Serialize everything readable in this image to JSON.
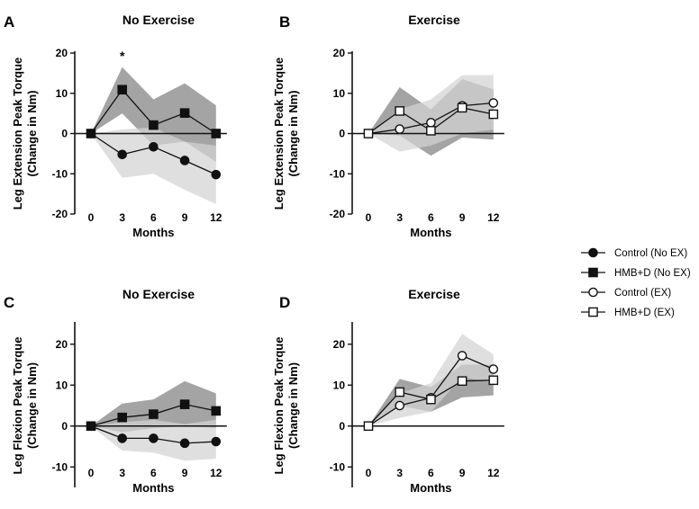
{
  "legend": [
    {
      "label": "Control (No EX)",
      "marker": "circle",
      "filled": true
    },
    {
      "label": "HMB+D (No EX)",
      "marker": "square",
      "filled": true
    },
    {
      "label": "Control (EX)",
      "marker": "circle",
      "filled": false
    },
    {
      "label": "HMB+D (EX)",
      "marker": "square",
      "filled": false
    }
  ],
  "colors": {
    "line": "#111111",
    "band_dark": "#8a8a8a",
    "band_light": "#d2d2d2"
  },
  "chart_data": [
    {
      "panel": "A",
      "type": "line",
      "title": "No Exercise",
      "xlabel": "Months",
      "ylabel": [
        "Leg Extension Peak Torque",
        "(Change in Nm)"
      ],
      "x": [
        0,
        3,
        6,
        9,
        12
      ],
      "ylim": [
        -20,
        20
      ],
      "yticks": [
        -20,
        -10,
        0,
        10,
        20
      ],
      "annotations": [
        {
          "text": "*",
          "x": 3,
          "y": 19.5
        }
      ],
      "series": [
        {
          "name": "Control (No EX)",
          "marker": "circle",
          "filled": true,
          "values": [
            0,
            -5.2,
            -3.3,
            -6.7,
            -10.2
          ],
          "band": {
            "shade": "light",
            "upper": [
              0,
              1,
              1.5,
              -2,
              -3
            ],
            "lower": [
              0,
              -11,
              -10,
              -14,
              -17.5
            ]
          }
        },
        {
          "name": "HMB+D (No EX)",
          "marker": "square",
          "filled": true,
          "values": [
            0,
            10.9,
            2.1,
            5.1,
            0
          ],
          "band": {
            "shade": "dark",
            "upper": [
              0,
              16.5,
              8.5,
              12.5,
              7
            ],
            "lower": [
              0,
              5,
              -3,
              -2,
              -7
            ]
          }
        }
      ]
    },
    {
      "panel": "B",
      "type": "line",
      "title": "Exercise",
      "xlabel": "Months",
      "ylabel": [
        "Leg Extension Peak Torque",
        "(Change in Nm)"
      ],
      "x": [
        0,
        3,
        6,
        9,
        12
      ],
      "ylim": [
        -20,
        20
      ],
      "yticks": [
        -20,
        -10,
        0,
        10,
        20
      ],
      "series": [
        {
          "name": "Control (EX)",
          "marker": "circle",
          "filled": false,
          "values": [
            0,
            1.1,
            2.7,
            6.9,
            7.6
          ],
          "band": {
            "shade": "light",
            "upper": [
              0,
              6,
              8.5,
              14.5,
              14.5
            ],
            "lower": [
              0,
              -4.5,
              -3,
              0,
              1
            ]
          }
        },
        {
          "name": "HMB+D (EX)",
          "marker": "square",
          "filled": false,
          "values": [
            0,
            5.6,
            0.7,
            6.4,
            4.8
          ],
          "band": {
            "shade": "dark",
            "upper": [
              0,
              11.5,
              6,
              13.5,
              11
            ],
            "lower": [
              0,
              -0.5,
              -5.5,
              -1,
              -1.5
            ]
          }
        }
      ]
    },
    {
      "panel": "C",
      "type": "line",
      "title": "No Exercise",
      "xlabel": "Months",
      "ylabel": [
        "Leg Flexion Peak Torque",
        "(Change in Nm)"
      ],
      "x": [
        0,
        3,
        6,
        9,
        12
      ],
      "ylim": [
        -15,
        25
      ],
      "yticks": [
        -10,
        0,
        10,
        20
      ],
      "series": [
        {
          "name": "Control (No EX)",
          "marker": "circle",
          "filled": true,
          "values": [
            0,
            -3.0,
            -3.0,
            -4.2,
            -3.8
          ],
          "band": {
            "shade": "light",
            "upper": [
              0,
              1,
              1.5,
              0.5,
              1.5
            ],
            "lower": [
              0,
              -6,
              -6.5,
              -8.5,
              -8
            ]
          }
        },
        {
          "name": "HMB+D (No EX)",
          "marker": "square",
          "filled": true,
          "values": [
            0,
            2.1,
            2.9,
            5.3,
            3.7
          ],
          "band": {
            "shade": "dark",
            "upper": [
              0,
              5.5,
              6.5,
              11,
              8
            ],
            "lower": [
              0,
              -1.5,
              -0.5,
              0,
              -0.5
            ]
          }
        }
      ]
    },
    {
      "panel": "D",
      "type": "line",
      "title": "Exercise",
      "xlabel": "Months",
      "ylabel": [
        "Leg Flexion Peak Torque",
        "(Change in Nm)"
      ],
      "x": [
        0,
        3,
        6,
        9,
        12
      ],
      "ylim": [
        -15,
        25
      ],
      "yticks": [
        -10,
        0,
        10,
        20
      ],
      "series": [
        {
          "name": "Control (EX)",
          "marker": "circle",
          "filled": false,
          "values": [
            0,
            5.0,
            6.9,
            17.2,
            13.9
          ],
          "band": {
            "shade": "light",
            "upper": [
              0,
              8,
              10.5,
              22.5,
              17.5
            ],
            "lower": [
              0,
              2,
              3.5,
              12,
              10.5
            ]
          }
        },
        {
          "name": "HMB+D (EX)",
          "marker": "square",
          "filled": false,
          "values": [
            0,
            8.3,
            6.5,
            11.0,
            11.2
          ],
          "band": {
            "shade": "dark",
            "upper": [
              0,
              11.5,
              9.5,
              15,
              15
            ],
            "lower": [
              0,
              5,
              3.5,
              7,
              7.5
            ]
          }
        }
      ]
    }
  ]
}
